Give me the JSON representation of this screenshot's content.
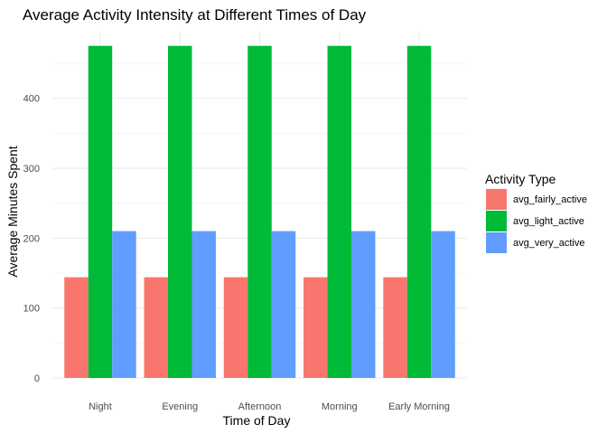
{
  "chart_data": {
    "type": "bar",
    "title": "Average Activity Intensity at Different Times of Day",
    "xlabel": "Time of Day",
    "ylabel": "Average Minutes Spent",
    "categories": [
      "Night",
      "Evening",
      "Afternoon",
      "Morning",
      "Early Morning"
    ],
    "series": [
      {
        "name": "avg_fairly_active",
        "color": "#F8766D",
        "values": [
          144,
          144,
          144,
          144,
          144
        ]
      },
      {
        "name": "avg_light_active",
        "color": "#00BA38",
        "values": [
          475,
          475,
          475,
          475,
          475
        ]
      },
      {
        "name": "avg_very_active",
        "color": "#619CFF",
        "values": [
          210,
          210,
          210,
          210,
          210
        ]
      }
    ],
    "yticks": [
      0,
      100,
      200,
      300,
      400
    ],
    "ylim": [
      0,
      475
    ],
    "grid": true,
    "legend": {
      "title": "Activity Type",
      "position": "right"
    }
  }
}
